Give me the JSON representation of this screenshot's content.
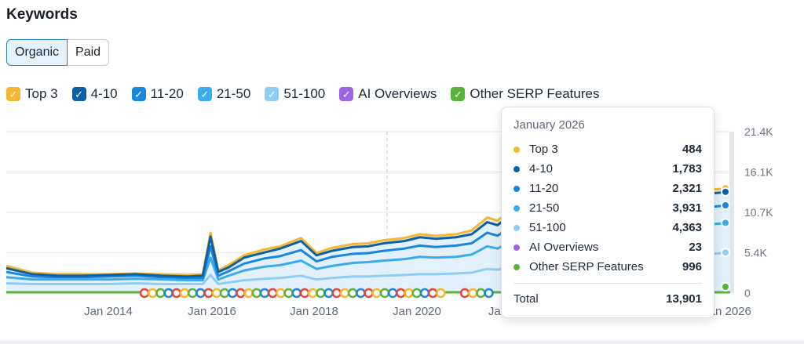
{
  "title": "Keywords",
  "toggle": {
    "organic": "Organic",
    "paid": "Paid",
    "active": "organic"
  },
  "legend": [
    {
      "label": "Top 3",
      "color": "#f6b72e"
    },
    {
      "label": "4-10",
      "color": "#0d5fa6"
    },
    {
      "label": "11-20",
      "color": "#1a86dd"
    },
    {
      "label": "21-50",
      "color": "#3aabef"
    },
    {
      "label": "51-100",
      "color": "#8fcdf6"
    },
    {
      "label": "AI Overviews",
      "color": "#a063e6"
    },
    {
      "label": "Other SERP Features",
      "color": "#59b33a"
    }
  ],
  "tooltip": {
    "date": "January 2026",
    "rows": [
      {
        "label": "Top 3",
        "value": "484",
        "color": "#f6b72e"
      },
      {
        "label": "4-10",
        "value": "1,783",
        "color": "#0d5fa6"
      },
      {
        "label": "11-20",
        "value": "2,321",
        "color": "#1a86dd"
      },
      {
        "label": "21-50",
        "value": "3,931",
        "color": "#3aabef"
      },
      {
        "label": "51-100",
        "value": "4,363",
        "color": "#8fcdf6"
      },
      {
        "label": "AI Overviews",
        "value": "23",
        "color": "#a063e6"
      },
      {
        "label": "Other SERP Features",
        "value": "996",
        "color": "#59b33a"
      }
    ],
    "total_label": "Total",
    "total_value": "13,901"
  },
  "chart_data": {
    "type": "area",
    "x_tick_labels": [
      "Jan 2014",
      "Jan 2016",
      "Jan 2018",
      "Jan 2020",
      "Jan",
      "Jan 2026"
    ],
    "y_tick_labels": [
      "21.4K",
      "16.1K",
      "10.7K",
      "5.4K",
      "0"
    ],
    "ylim": [
      0,
      21400
    ],
    "x": [
      2012.0,
      2012.5,
      2013.0,
      2013.5,
      2014.0,
      2014.5,
      2015.0,
      2015.5,
      2015.8,
      2015.95,
      2016.1,
      2016.3,
      2016.6,
      2017.0,
      2017.3,
      2017.7,
      2018.0,
      2018.3,
      2018.7,
      2019.0,
      2019.3,
      2019.7,
      2020.0,
      2020.3,
      2020.7,
      2021.0,
      2021.3,
      2021.5,
      2021.8,
      2022.0,
      2022.3,
      2022.6,
      2023.0,
      2026.0
    ],
    "series": [
      {
        "name": "Top 3",
        "color": "#f6b72e",
        "values": [
          3600,
          2700,
          2500,
          2500,
          2500,
          2600,
          2500,
          2400,
          2500,
          8000,
          3000,
          3700,
          5000,
          5800,
          6200,
          7300,
          5300,
          6000,
          6500,
          6600,
          7000,
          7300,
          7800,
          7600,
          7800,
          8300,
          10000,
          9600,
          11300,
          12500,
          12000,
          13000,
          12500,
          13900
        ]
      },
      {
        "name": "4-10",
        "color": "#0d5fa6",
        "values": [
          3300,
          2500,
          2300,
          2300,
          2400,
          2500,
          2300,
          2200,
          2300,
          7500,
          2800,
          3400,
          4700,
          5400,
          5900,
          6900,
          5000,
          5600,
          6100,
          6200,
          6600,
          6900,
          7400,
          7200,
          7400,
          7800,
          9400,
          9000,
          10600,
          11800,
          11300,
          12300,
          11800,
          13417
        ]
      },
      {
        "name": "11-20",
        "color": "#1a86dd",
        "values": [
          2800,
          2200,
          2100,
          2100,
          2200,
          2300,
          2100,
          2000,
          2000,
          6200,
          2300,
          2900,
          3900,
          4600,
          4900,
          5700,
          4200,
          4800,
          5200,
          5300,
          5600,
          5900,
          6300,
          6100,
          6300,
          6600,
          8000,
          7600,
          9000,
          10000,
          9600,
          10500,
          10100,
          11634
        ]
      },
      {
        "name": "21-50",
        "color": "#3aabef",
        "values": [
          2100,
          1800,
          1800,
          1800,
          1800,
          1900,
          1800,
          1700,
          1700,
          4700,
          1800,
          2300,
          3000,
          3500,
          3700,
          4300,
          3200,
          3600,
          4000,
          4100,
          4300,
          4500,
          4800,
          4700,
          4800,
          5100,
          6200,
          5900,
          7000,
          7700,
          7400,
          8100,
          7800,
          9313
        ]
      },
      {
        "name": "51-100",
        "color": "#8fcdf6",
        "values": [
          1300,
          1200,
          1200,
          1200,
          1200,
          1300,
          1200,
          1200,
          1200,
          2400,
          1200,
          1400,
          1700,
          1900,
          2000,
          2300,
          1800,
          2000,
          2200,
          2200,
          2300,
          2400,
          2500,
          2500,
          2600,
          2700,
          3200,
          3100,
          3600,
          4000,
          3800,
          4200,
          4000,
          5382
        ]
      },
      {
        "name": "AI Overviews",
        "color": "#a063e6",
        "values": [
          0,
          0,
          0,
          0,
          0,
          0,
          0,
          0,
          0,
          0,
          0,
          0,
          0,
          0,
          0,
          0,
          0,
          0,
          0,
          0,
          0,
          0,
          0,
          0,
          0,
          0,
          0,
          0,
          0,
          0,
          0,
          0,
          0,
          23
        ]
      },
      {
        "name": "Other SERP Features",
        "color": "#59b33a",
        "values": [
          300,
          300,
          300,
          300,
          300,
          300,
          300,
          300,
          300,
          300,
          300,
          300,
          300,
          300,
          300,
          300,
          300,
          300,
          300,
          300,
          300,
          300,
          300,
          300,
          300,
          300,
          300,
          300,
          300,
          300,
          300,
          300,
          300,
          996
        ]
      }
    ],
    "grid": true,
    "legend_position": "top"
  }
}
